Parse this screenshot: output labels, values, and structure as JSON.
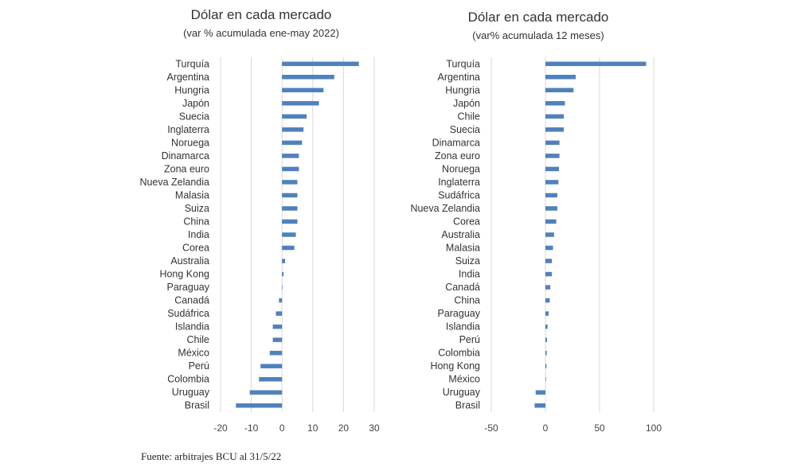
{
  "chart_data": [
    {
      "type": "bar",
      "orientation": "horizontal",
      "title": "Dólar en cada mercado",
      "subtitle": "(var % acumulada ene-may 2022)",
      "xlim": [
        -20,
        30
      ],
      "xticks": [
        "-20",
        "-10",
        "0",
        "10",
        "20",
        "30"
      ],
      "grid": true,
      "bar_color": "#4f81bd",
      "grid_color": "#d9d9d9",
      "categories": [
        "Turquía",
        "Argentina",
        "Hungria",
        "Japón",
        "Suecia",
        "Inglaterra",
        "Noruega",
        "Dinamarca",
        "Zona euro",
        "Nueva Zelandia",
        "Malasia",
        "Suiza",
        "China",
        "India",
        "Corea",
        "Australia",
        "Hong Kong",
        "Paraguay",
        "Canadá",
        "Sudáfrica",
        "Islandia",
        "Chile",
        "México",
        "Perú",
        "Colombia",
        "Uruguay",
        "Brasil"
      ],
      "values": [
        25,
        17,
        13.5,
        12,
        8,
        7,
        6.5,
        5.5,
        5.5,
        5,
        5,
        5,
        5,
        4.5,
        4,
        1,
        0.5,
        0,
        -1,
        -2,
        -3,
        -3,
        -4,
        -7,
        -7.5,
        -10.5,
        -15
      ]
    },
    {
      "type": "bar",
      "orientation": "horizontal",
      "title": "Dólar en cada mercado",
      "subtitle": "(var% acumulada 12 meses)",
      "xlim": [
        -50,
        100
      ],
      "xticks": [
        "-50",
        "0",
        "50",
        "100"
      ],
      "grid": true,
      "bar_color": "#4f81bd",
      "grid_color": "#d9d9d9",
      "categories": [
        "Turquía",
        "Argentina",
        "Hungria",
        "Japón",
        "Chile",
        "Suecia",
        "Dinamarca",
        "Zona euro",
        "Noruega",
        "Inglaterra",
        "Sudáfrica",
        "Nueva Zelandia",
        "Corea",
        "Australia",
        "Malasia",
        "Suiza",
        "India",
        "Canadá",
        "China",
        "Paraguay",
        "Islandia",
        "Perú",
        "Colombia",
        "Hong Kong",
        "México",
        "Uruguay",
        "Brasil"
      ],
      "values": [
        93,
        28,
        26,
        18,
        17,
        17,
        13,
        13,
        12.5,
        12,
        11,
        11,
        10,
        8,
        7,
        6,
        6,
        4.5,
        4,
        3,
        2,
        1.5,
        1.2,
        1,
        0.5,
        -9,
        -10
      ]
    }
  ],
  "source": "Fuente: arbitrajes BCU al 31/5/22"
}
